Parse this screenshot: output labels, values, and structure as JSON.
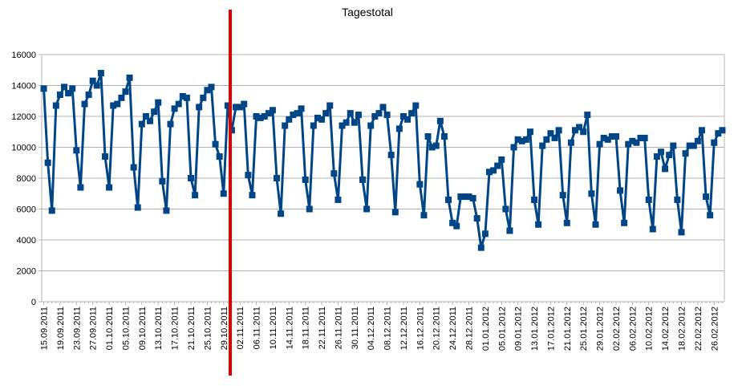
{
  "chart_data": {
    "type": "line",
    "title": "Tagestotal",
    "categories": [
      "15.09.2011",
      null,
      null,
      null,
      "19.09.2011",
      null,
      null,
      null,
      "23.09.2011",
      null,
      null,
      null,
      "27.09.2011",
      null,
      null,
      null,
      "01.10.2011",
      null,
      null,
      null,
      "05.10.2011",
      null,
      null,
      null,
      "09.10.2011",
      null,
      null,
      null,
      "13.10.2011",
      null,
      null,
      null,
      "17.10.2011",
      null,
      null,
      null,
      "21.10.2011",
      null,
      null,
      null,
      "25.10.2011",
      null,
      null,
      null,
      "29.10.2011",
      null,
      null,
      null,
      "02.11.2011",
      null,
      null,
      null,
      "06.11.2011",
      null,
      null,
      null,
      "10.11.2011",
      null,
      null,
      null,
      "14.11.2011",
      null,
      null,
      null,
      "18.11.2011",
      null,
      null,
      null,
      "22.11.2011",
      null,
      null,
      null,
      "26.11.2011",
      null,
      null,
      null,
      "30.11.2011",
      null,
      null,
      null,
      "04.12.2011",
      null,
      null,
      null,
      "08.12.2011",
      null,
      null,
      null,
      "12.12.2011",
      null,
      null,
      null,
      "16.12.2011",
      null,
      null,
      null,
      "20.12.2011",
      null,
      null,
      null,
      "24.12.2011",
      null,
      null,
      null,
      "28.12.2011",
      null,
      null,
      null,
      "01.01.2012",
      null,
      null,
      null,
      "05.01.2012",
      null,
      null,
      null,
      "09.01.2012",
      null,
      null,
      null,
      "13.01.2012",
      null,
      null,
      null,
      "17.01.2012",
      null,
      null,
      null,
      "21.01.2012",
      null,
      null,
      null,
      "25.01.2012",
      null,
      null,
      null,
      "29.01.2012",
      null,
      null,
      null,
      "02.02.2012",
      null,
      null,
      null,
      "06.02.2012",
      null,
      null,
      null,
      "10.02.2012",
      null,
      null,
      null,
      "14.02.2012",
      null,
      null,
      null,
      "18.02.2012",
      null,
      null,
      null,
      "22.02.2012",
      null,
      null,
      null,
      "26.02.2012",
      null,
      null
    ],
    "series": [
      {
        "color": "#004586",
        "values": [
          13800,
          9000,
          5900,
          12700,
          13400,
          13900,
          13500,
          13800,
          9800,
          7400,
          12800,
          13400,
          14300,
          14000,
          14800,
          9400,
          7400,
          12700,
          12800,
          13200,
          13600,
          14500,
          8700,
          6100,
          11500,
          12000,
          11700,
          12300,
          12900,
          7800,
          5900,
          11500,
          12500,
          12800,
          13300,
          13200,
          8000,
          6900,
          12600,
          13200,
          13700,
          13900,
          10200,
          9400,
          7000,
          12700,
          11100,
          12600,
          12600,
          12800,
          8200,
          6900,
          12000,
          11900,
          12000,
          12200,
          12400,
          8000,
          5700,
          11400,
          11800,
          12100,
          12200,
          12500,
          7900,
          6000,
          11400,
          11900,
          11800,
          12200,
          12700,
          8300,
          6600,
          11400,
          11600,
          12200,
          11600,
          12100,
          7900,
          6000,
          11400,
          12000,
          12200,
          12600,
          12100,
          9500,
          5800,
          11200,
          12000,
          11800,
          12200,
          12700,
          7600,
          5600,
          10700,
          10000,
          10100,
          11700,
          10700,
          6600,
          5100,
          4900,
          6800,
          6800,
          6800,
          6700,
          5400,
          3500,
          4400,
          8400,
          8500,
          8800,
          9200,
          6000,
          4600,
          10000,
          10500,
          10400,
          10500,
          11000,
          6600,
          5000,
          10100,
          10500,
          10900,
          10600,
          11100,
          6900,
          5100,
          10300,
          11100,
          11300,
          11000,
          12100,
          7000,
          5000,
          10200,
          10600,
          10500,
          10700,
          10700,
          7200,
          5100,
          10200,
          10400,
          10300,
          10600,
          10600,
          6600,
          4700,
          9400,
          9700,
          8600,
          9500,
          10100,
          6600,
          4500,
          9600,
          10100,
          10100,
          10400,
          11100,
          6800,
          5600,
          10300,
          10900,
          11100
        ]
      }
    ],
    "ylim": [
      0,
      16000
    ],
    "yticks": [
      0,
      2000,
      4000,
      6000,
      8000,
      10000,
      12000,
      14000,
      16000
    ],
    "grid": true
  }
}
